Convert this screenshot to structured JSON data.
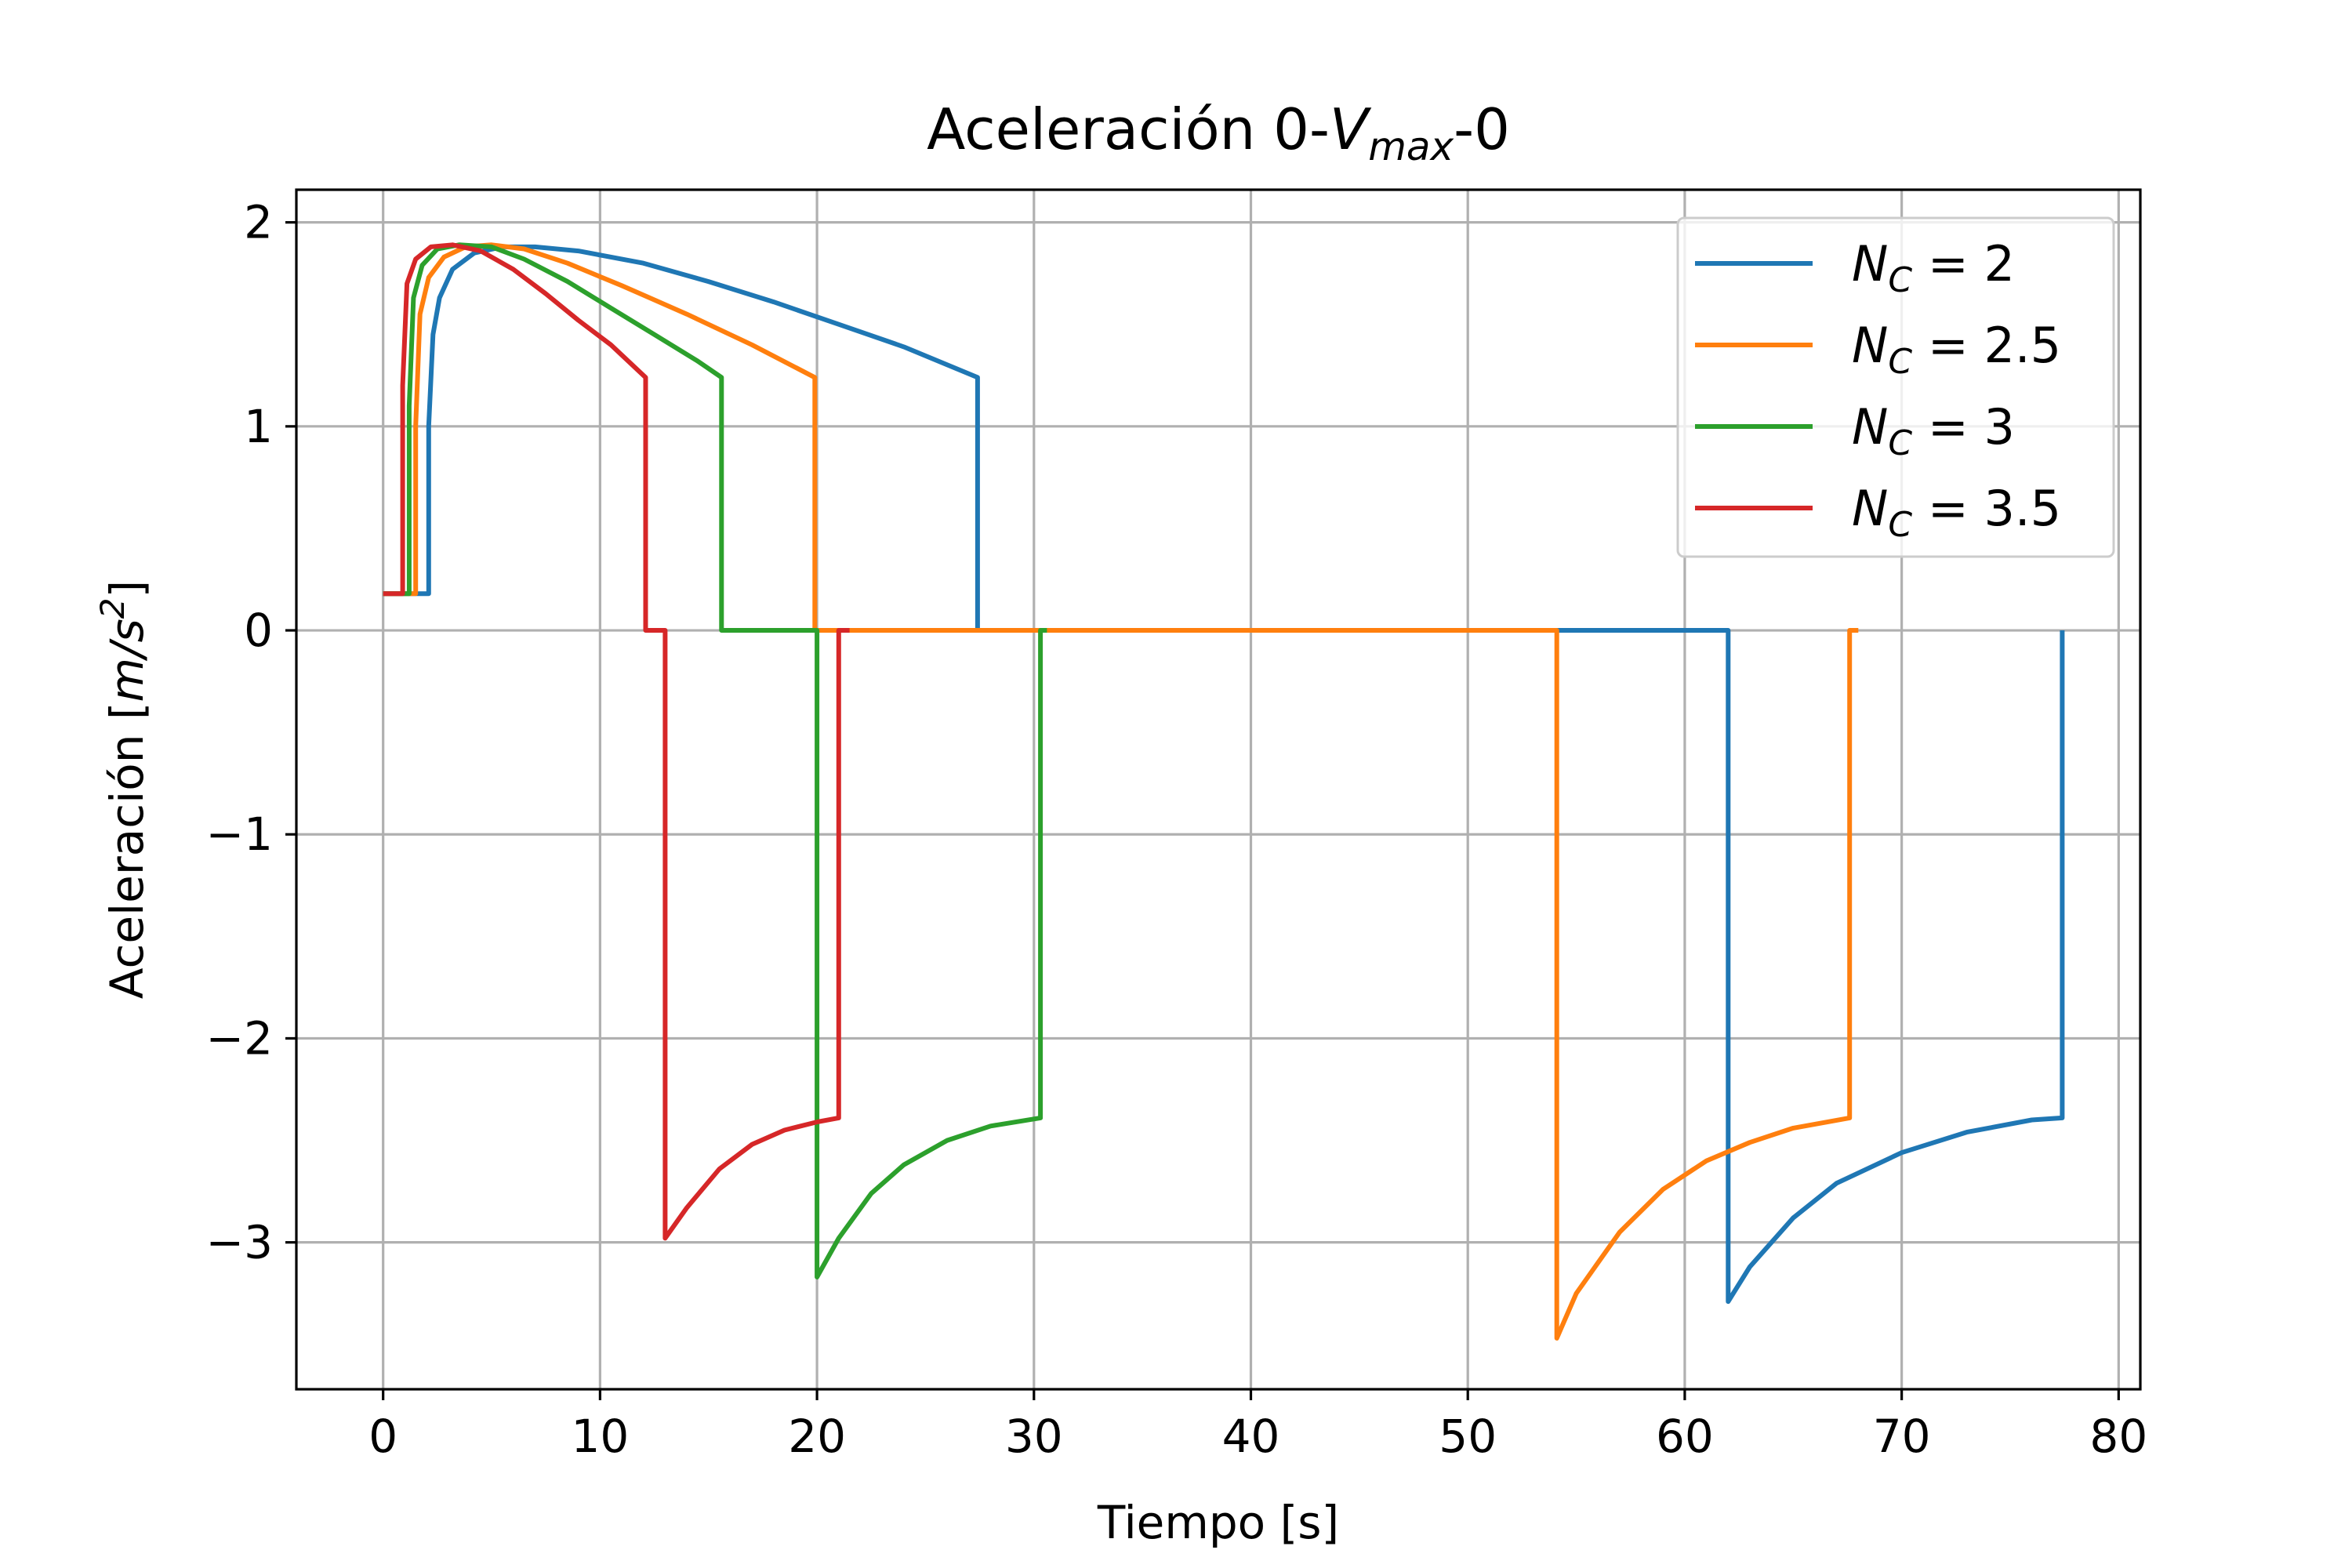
{
  "chart_data": {
    "type": "line",
    "title": {
      "prefix": "Aceleración 0-",
      "main": "V",
      "sub": "max",
      "suffix": "-0"
    },
    "xlabel": "Tiempo [s]",
    "ylabel": {
      "prefix": "Aceleración [",
      "unit": "m/s",
      "sup": "2",
      "suffix": "]"
    },
    "xlim": [
      -4,
      81
    ],
    "ylim": [
      -3.72,
      2.16
    ],
    "x_ticks": [
      0,
      10,
      20,
      30,
      40,
      50,
      60,
      70,
      80
    ],
    "x_tick_labels": [
      "0",
      "10",
      "20",
      "30",
      "40",
      "50",
      "60",
      "70",
      "80"
    ],
    "y_ticks": [
      -3,
      -2,
      -1,
      0,
      1,
      2
    ],
    "y_tick_labels": [
      "−3",
      "−2",
      "−1",
      "0",
      "1",
      "2"
    ],
    "grid": true,
    "legend_position": "top-right",
    "series": [
      {
        "name": "2",
        "legend_prefix": "N",
        "legend_sub": "C",
        "legend_eq": " =  ",
        "color": "#1f77b4",
        "points": [
          [
            0,
            0.18
          ],
          [
            2.1,
            0.18
          ],
          [
            2.1,
            1.0
          ],
          [
            2.3,
            1.45
          ],
          [
            2.6,
            1.63
          ],
          [
            3.2,
            1.77
          ],
          [
            4.2,
            1.85
          ],
          [
            5.5,
            1.88
          ],
          [
            7,
            1.88
          ],
          [
            9,
            1.86
          ],
          [
            12,
            1.8
          ],
          [
            15,
            1.71
          ],
          [
            18,
            1.61
          ],
          [
            21,
            1.5
          ],
          [
            24,
            1.39
          ],
          [
            27.4,
            1.24
          ],
          [
            27.4,
            0
          ],
          [
            62,
            0
          ],
          [
            62,
            -3.29
          ],
          [
            63,
            -3.12
          ],
          [
            65,
            -2.88
          ],
          [
            67,
            -2.71
          ],
          [
            70,
            -2.56
          ],
          [
            73,
            -2.46
          ],
          [
            76,
            -2.4
          ],
          [
            77.4,
            -2.39
          ],
          [
            77.4,
            0
          ]
        ]
      },
      {
        "name": "2.5",
        "legend_prefix": "N",
        "legend_sub": "C",
        "legend_eq": " =  ",
        "color": "#ff7f0e",
        "points": [
          [
            0,
            0.18
          ],
          [
            1.5,
            0.18
          ],
          [
            1.5,
            1.0
          ],
          [
            1.7,
            1.55
          ],
          [
            2.1,
            1.73
          ],
          [
            2.8,
            1.83
          ],
          [
            3.8,
            1.88
          ],
          [
            5,
            1.89
          ],
          [
            6.5,
            1.87
          ],
          [
            8.5,
            1.8
          ],
          [
            11,
            1.69
          ],
          [
            14,
            1.55
          ],
          [
            17,
            1.4
          ],
          [
            19.9,
            1.24
          ],
          [
            19.9,
            0
          ],
          [
            54.1,
            0
          ],
          [
            54.1,
            -3.47
          ],
          [
            55,
            -3.25
          ],
          [
            57,
            -2.95
          ],
          [
            59,
            -2.74
          ],
          [
            61,
            -2.6
          ],
          [
            63,
            -2.51
          ],
          [
            65,
            -2.44
          ],
          [
            67.6,
            -2.39
          ],
          [
            67.6,
            0
          ],
          [
            68,
            0
          ]
        ]
      },
      {
        "name": "3",
        "legend_prefix": "N",
        "legend_sub": "C",
        "legend_eq": " =  ",
        "color": "#2ca02c",
        "points": [
          [
            0,
            0.18
          ],
          [
            1.2,
            0.18
          ],
          [
            1.2,
            1.1
          ],
          [
            1.4,
            1.63
          ],
          [
            1.8,
            1.79
          ],
          [
            2.5,
            1.87
          ],
          [
            3.5,
            1.89
          ],
          [
            5,
            1.88
          ],
          [
            6.5,
            1.82
          ],
          [
            8.5,
            1.71
          ],
          [
            10.5,
            1.58
          ],
          [
            12.5,
            1.45
          ],
          [
            14.5,
            1.32
          ],
          [
            15.6,
            1.24
          ],
          [
            15.6,
            0
          ],
          [
            20,
            0
          ],
          [
            20,
            -3.17
          ],
          [
            21,
            -2.98
          ],
          [
            22.5,
            -2.76
          ],
          [
            24,
            -2.62
          ],
          [
            26,
            -2.5
          ],
          [
            28,
            -2.43
          ],
          [
            30.3,
            -2.39
          ],
          [
            30.3,
            0
          ],
          [
            30.6,
            0
          ]
        ]
      },
      {
        "name": "3.5",
        "legend_prefix": "N",
        "legend_sub": "C",
        "legend_eq": " =  ",
        "color": "#d62728",
        "points": [
          [
            0,
            0.18
          ],
          [
            0.9,
            0.18
          ],
          [
            0.9,
            1.2
          ],
          [
            1.1,
            1.7
          ],
          [
            1.5,
            1.82
          ],
          [
            2.2,
            1.88
          ],
          [
            3.2,
            1.89
          ],
          [
            4.5,
            1.86
          ],
          [
            6,
            1.77
          ],
          [
            7.5,
            1.65
          ],
          [
            9,
            1.52
          ],
          [
            10.5,
            1.4
          ],
          [
            12.1,
            1.24
          ],
          [
            12.1,
            0
          ],
          [
            13.0,
            0
          ],
          [
            13.0,
            -2.98
          ],
          [
            14,
            -2.83
          ],
          [
            15.5,
            -2.64
          ],
          [
            17,
            -2.52
          ],
          [
            18.5,
            -2.45
          ],
          [
            20,
            -2.41
          ],
          [
            21,
            -2.39
          ],
          [
            21,
            0
          ],
          [
            21.5,
            0
          ]
        ]
      }
    ]
  }
}
